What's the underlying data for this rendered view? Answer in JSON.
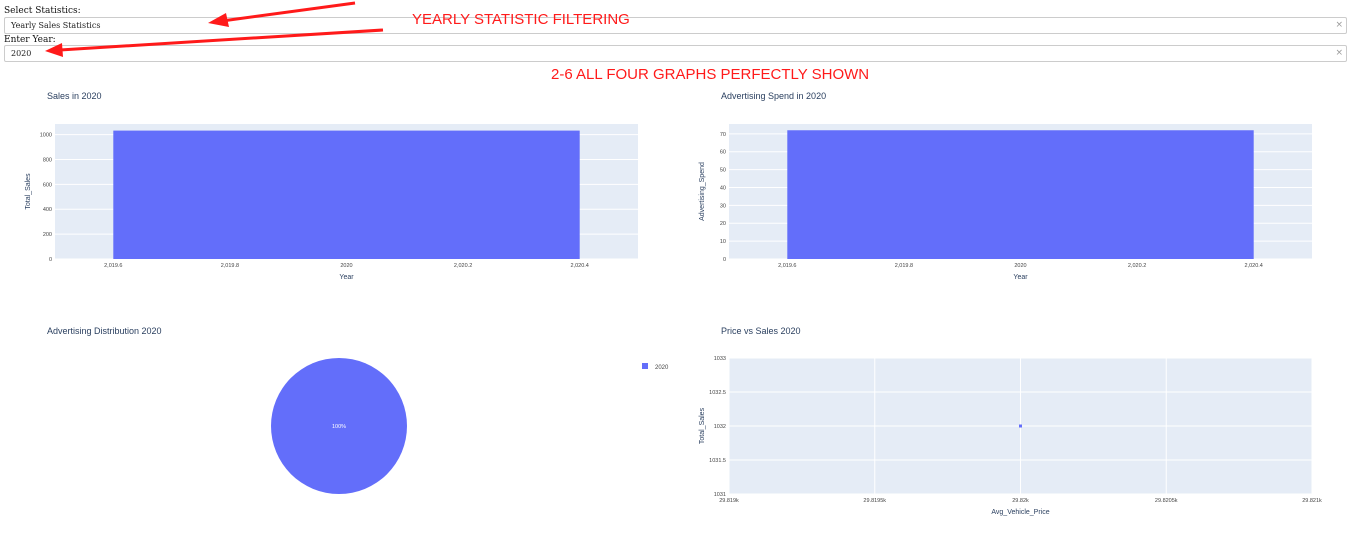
{
  "controls": {
    "stat_label": "Select Statistics:",
    "stat_value": "Yearly Sales Statistics",
    "year_label": "Enter Year:",
    "year_value": "2020",
    "clear_glyph": "×"
  },
  "annotations": {
    "filter_note": "YEARLY STATISTIC FILTERING",
    "graphs_note": "2-6 ALL FOUR GRAPHS PERFECTLY SHOWN",
    "color": "#ff1a1a"
  },
  "colors": {
    "bar": "#636efa",
    "plot_bg": "#e5ecf6",
    "grid": "#ffffff"
  },
  "chart_data": [
    {
      "type": "bar",
      "title": "Sales in 2020",
      "xlabel": "Year",
      "ylabel": "Total_Sales",
      "categories": [
        2020
      ],
      "values": [
        1032
      ],
      "xlim": [
        2019.5,
        2020.5
      ],
      "ylim": [
        0,
        1085
      ],
      "xticks": [
        "2,019.6",
        "2,019.8",
        "2020",
        "2,020.2",
        "2,020.4"
      ],
      "yticks": [
        "0",
        "200",
        "400",
        "600",
        "800",
        "1000"
      ]
    },
    {
      "type": "bar",
      "title": "Advertising Spend in 2020",
      "xlabel": "Year",
      "ylabel": "Advertising_Spend",
      "categories": [
        2020
      ],
      "values": [
        72
      ],
      "xlim": [
        2019.5,
        2020.5
      ],
      "ylim": [
        0,
        75.5
      ],
      "xticks": [
        "2,019.6",
        "2,019.8",
        "2020",
        "2,020.2",
        "2,020.4"
      ],
      "yticks": [
        "0",
        "10",
        "20",
        "30",
        "40",
        "50",
        "60",
        "70"
      ]
    },
    {
      "type": "pie",
      "title": "Advertising Distribution 2020",
      "labels": [
        "2020"
      ],
      "values": [
        100
      ],
      "slice_label": "100%",
      "legend": "right"
    },
    {
      "type": "scatter",
      "title": "Price vs Sales 2020",
      "xlabel": "Avg_Vehicle_Price",
      "ylabel": "Total_Sales",
      "x": [
        29820
      ],
      "y": [
        1032
      ],
      "xlim": [
        29819,
        29821
      ],
      "ylim": [
        1031,
        1033
      ],
      "xticks": [
        "29.819k",
        "29.8195k",
        "29.82k",
        "29.8205k",
        "29.821k"
      ],
      "yticks": [
        "1031",
        "1031.5",
        "1032",
        "1032.5",
        "1033"
      ]
    }
  ]
}
